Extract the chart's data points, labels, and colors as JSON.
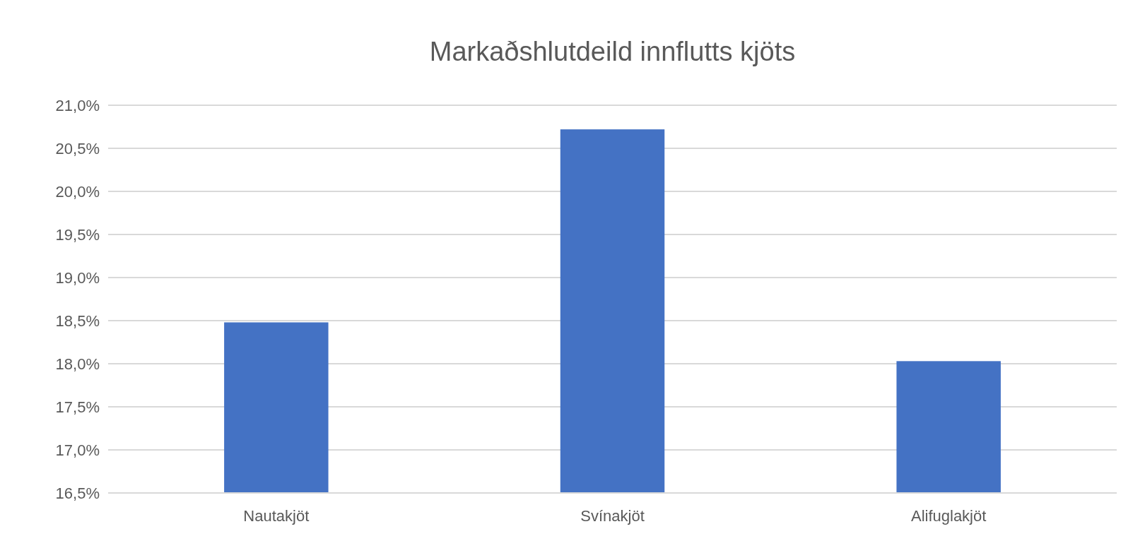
{
  "chart_data": {
    "type": "bar",
    "title": "Markaðshlutdeild innflutts kjöts",
    "categories": [
      "Nautakjöt",
      "Svínakjöt",
      "Alifuglakjöt"
    ],
    "values": [
      18.48,
      20.72,
      18.03
    ],
    "color": "#4472c4",
    "ylim": [
      16.5,
      21.0
    ],
    "yticks": [
      {
        "value": 16.5,
        "label": "16,5%"
      },
      {
        "value": 17.0,
        "label": "17,0%"
      },
      {
        "value": 17.5,
        "label": "17,5%"
      },
      {
        "value": 18.0,
        "label": "18,0%"
      },
      {
        "value": 18.5,
        "label": "18,5%"
      },
      {
        "value": 19.0,
        "label": "19,0%"
      },
      {
        "value": 19.5,
        "label": "19,5%"
      },
      {
        "value": 20.0,
        "label": "20,0%"
      },
      {
        "value": 20.5,
        "label": "20,5%"
      },
      {
        "value": 21.0,
        "label": "21,0%"
      }
    ],
    "grid": true
  }
}
